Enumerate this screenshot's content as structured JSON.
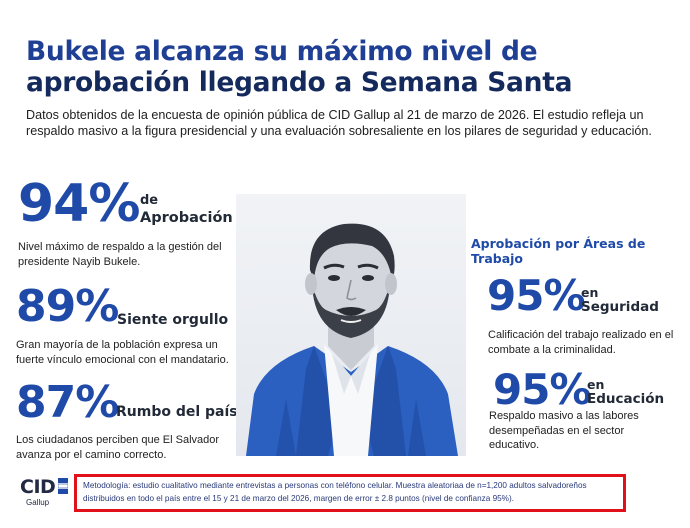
{
  "header": {
    "title_line1": "Bukele alcanza su máximo nivel de",
    "title_line2": "aprobación llegando a Semana Santa",
    "subtitle": "Datos obtenidos de la encuesta de opinión pública de CID Gallup al 21 de marzo de 2026. El estudio refleja un respaldo masivo a la figura presidencial y una evaluación sobresaliente en los pilares de seguridad y educación."
  },
  "left_stats": [
    {
      "value": "94%",
      "label_line1": "de",
      "label_line2": "Aprobación",
      "description": "Nivel máximo de respaldo a la gestión del presidente Nayib Bukele."
    },
    {
      "value": "89%",
      "label": "Siente orgullo",
      "description": "Gran mayoría de la población expresa un fuerte vínculo emocional con el mandatario."
    },
    {
      "value": "87%",
      "label": "Rumbo del país",
      "description": "Los ciudadanos perciben que El Salvador avanza por el camino correcto."
    }
  ],
  "areas": {
    "title": "Aprobación por Áreas de Trabajo",
    "items": [
      {
        "value": "95%",
        "label_line1": "en",
        "label_line2": "Seguridad",
        "description": "Calificación del trabajo realizado en el combate a la criminalidad."
      },
      {
        "value": "95%",
        "label_line1": "en",
        "label_line2": "Educación",
        "description": "Respaldo masivo a las labores desempeñadas en el sector educativo."
      }
    ]
  },
  "footer": {
    "methodology": "Metodología: estudio cualitativo mediante entrevistas a personas con teléfono celular. Muestra aleatoriaa de n=1,200 adultos salvadoreños distribuidos en todo el país entre el 15 y 21 de marzo del 2026, margen de error ± 2.8 puntos (nivel de confianza 95%)."
  },
  "logo": {
    "name": "CID",
    "sub": "Gallup"
  },
  "colors": {
    "accent_blue": "#1f4aa8",
    "navy": "#152a5c",
    "highlight_red": "#e0111b"
  }
}
